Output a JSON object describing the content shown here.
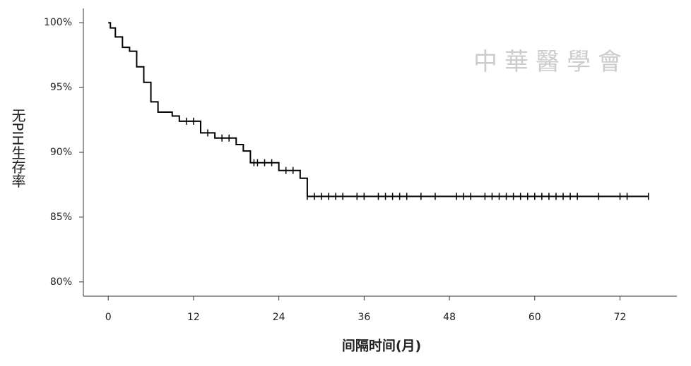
{
  "chart_data": {
    "type": "step",
    "xlabel": "间隔时间(月)",
    "ylabel": "无PIH生存率",
    "watermark": "中華醫學會",
    "xlim": [
      -3.5,
      80
    ],
    "ylim": [
      78.9,
      101.1
    ],
    "xticks": [
      0,
      12,
      24,
      36,
      48,
      60,
      72
    ],
    "yticks": [
      {
        "value": 80,
        "label": "80%"
      },
      {
        "value": 85,
        "label": "85%"
      },
      {
        "value": 90,
        "label": "90%"
      },
      {
        "value": 95,
        "label": "95%"
      },
      {
        "value": 100,
        "label": "100%"
      }
    ],
    "series": [
      {
        "color": "#000000",
        "x": [
          0,
          0.3,
          1,
          2,
          3,
          4,
          5,
          6,
          7,
          9,
          10,
          13,
          15,
          18,
          19,
          20,
          24,
          27,
          28,
          76
        ],
        "values": [
          100,
          99.6,
          98.9,
          98.1,
          97.8,
          96.6,
          95.4,
          93.9,
          93.1,
          92.8,
          92.4,
          91.5,
          91.1,
          90.6,
          90.1,
          89.2,
          88.6,
          88.0,
          86.6,
          86.6
        ]
      }
    ],
    "censored": {
      "color": "#000000",
      "x": [
        11,
        12,
        14,
        16,
        17,
        20.5,
        21,
        22,
        23,
        25,
        26,
        28,
        29,
        30,
        31,
        32,
        33,
        35,
        36,
        38,
        39,
        40,
        41,
        42,
        44,
        46,
        49,
        50,
        51,
        53,
        54,
        55,
        56,
        57,
        58,
        59,
        60,
        61,
        62,
        63,
        64,
        65,
        66,
        69,
        72,
        73,
        76
      ],
      "values": [
        92.4,
        92.4,
        91.5,
        91.1,
        91.1,
        89.2,
        89.2,
        89.2,
        89.2,
        88.6,
        88.6,
        86.6,
        86.6,
        86.6,
        86.6,
        86.6,
        86.6,
        86.6,
        86.6,
        86.6,
        86.6,
        86.6,
        86.6,
        86.6,
        86.6,
        86.6,
        86.6,
        86.6,
        86.6,
        86.6,
        86.6,
        86.6,
        86.6,
        86.6,
        86.6,
        86.6,
        86.6,
        86.6,
        86.6,
        86.6,
        86.6,
        86.6,
        86.6,
        86.6,
        86.6,
        86.6,
        86.6
      ]
    }
  }
}
